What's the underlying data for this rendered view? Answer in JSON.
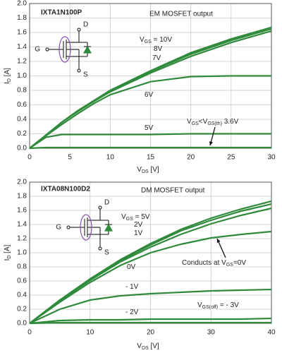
{
  "chart_data": [
    {
      "type": "line",
      "title": "IXTA1N100P",
      "subtitle": "EM MOSFET output",
      "x_label": [
        "V",
        "DS",
        " [V]"
      ],
      "y_label": [
        "I",
        "D",
        " [A]"
      ],
      "xlim": [
        0,
        30
      ],
      "ylim": [
        0,
        2
      ],
      "xticks": [
        0,
        5,
        10,
        15,
        20,
        25,
        30
      ],
      "yticks": [
        {
          "value": 0,
          "label": "0.0"
        },
        0.2,
        0.4,
        0.6,
        0.8,
        {
          "value": 1,
          "label": "1.0"
        },
        1.2,
        1.4,
        1.6,
        1.8,
        {
          "value": 2,
          "label": "2.0"
        }
      ],
      "grid": true,
      "color": "#2f8a3c",
      "symbol_labels": [
        "D",
        "G",
        "S"
      ],
      "x": [
        0,
        2,
        4,
        6,
        8,
        10,
        15,
        20,
        25,
        30
      ],
      "series": [
        {
          "name": [
            "V",
            "GS",
            " = 10V"
          ],
          "values": [
            0,
            0.18,
            0.36,
            0.52,
            0.66,
            0.8,
            1.07,
            1.32,
            1.51,
            1.67
          ]
        },
        {
          "name": [
            "8V"
          ],
          "values": [
            0,
            0.18,
            0.36,
            0.52,
            0.66,
            0.79,
            1.06,
            1.3,
            1.49,
            1.65
          ]
        },
        {
          "name": [
            "7V"
          ],
          "values": [
            0,
            0.18,
            0.36,
            0.51,
            0.65,
            0.78,
            1.04,
            1.27,
            1.46,
            1.62
          ]
        },
        {
          "name": [
            "6V"
          ],
          "values": [
            0,
            0.17,
            0.33,
            0.48,
            0.62,
            0.74,
            0.92,
            0.99,
            1.0,
            1.0
          ]
        },
        {
          "name": [
            "5V"
          ],
          "values": [
            0,
            0.15,
            0.19,
            0.19,
            0.19,
            0.19,
            0.19,
            0.2,
            0.2,
            0.2
          ]
        },
        {
          "name": [
            "V",
            "GS",
            "<V",
            "GS(th)",
            " 3.6V"
          ],
          "values": [
            0,
            0.01,
            0.01,
            0.01,
            0.01,
            0.01,
            0.01,
            0.01,
            0.01,
            0.01
          ]
        }
      ]
    },
    {
      "type": "line",
      "title": "IXTA08N100D2",
      "subtitle": "DM MOSFET output",
      "x_label": [
        "V",
        "DS",
        " [V]"
      ],
      "y_label": [
        "I",
        "D",
        " [A]"
      ],
      "xlim": [
        0,
        40
      ],
      "ylim": [
        0,
        2
      ],
      "xticks": [
        0,
        10,
        20,
        30,
        40
      ],
      "yticks": [
        {
          "value": 0,
          "label": "0.0"
        },
        0.2,
        0.4,
        0.6,
        0.8,
        {
          "value": 1,
          "label": "1.0"
        },
        1.2,
        1.4,
        1.6,
        1.8,
        {
          "value": 2,
          "label": "2.0"
        }
      ],
      "grid": true,
      "color": "#2f8a3c",
      "symbol_labels": [
        "D",
        "G",
        "S"
      ],
      "annotation": [
        "Conducts at V",
        "GS",
        "=0V"
      ],
      "x": [
        0,
        5,
        10,
        15,
        20,
        25,
        30,
        35,
        40
      ],
      "series": [
        {
          "name": [
            "V",
            "GS",
            " = 5V"
          ],
          "values": [
            0,
            0.33,
            0.63,
            0.9,
            1.13,
            1.33,
            1.49,
            1.62,
            1.73
          ]
        },
        {
          "name": [
            "2V"
          ],
          "values": [
            0,
            0.33,
            0.62,
            0.89,
            1.11,
            1.31,
            1.46,
            1.59,
            1.69
          ]
        },
        {
          "name": [
            "1V"
          ],
          "values": [
            0,
            0.32,
            0.61,
            0.87,
            1.08,
            1.26,
            1.41,
            1.53,
            1.63
          ]
        },
        {
          "name": [
            "0V"
          ],
          "values": [
            0,
            0.3,
            0.58,
            0.82,
            1.0,
            1.12,
            1.21,
            1.26,
            1.3
          ]
        },
        {
          "name": [
            "- 1V"
          ],
          "values": [
            0,
            0.2,
            0.33,
            0.39,
            0.42,
            0.44,
            0.46,
            0.47,
            0.48
          ]
        },
        {
          "name": [
            "- 2V"
          ],
          "values": [
            0,
            0.04,
            0.05,
            0.05,
            0.06,
            0.06,
            0.06,
            0.06,
            0.07
          ]
        },
        {
          "name": [
            "V",
            "GS(off)",
            " = - 3V"
          ],
          "values": [
            0,
            0.01,
            0.01,
            0.01,
            0.01,
            0.01,
            0.01,
            0.01,
            0.01
          ]
        }
      ]
    }
  ]
}
